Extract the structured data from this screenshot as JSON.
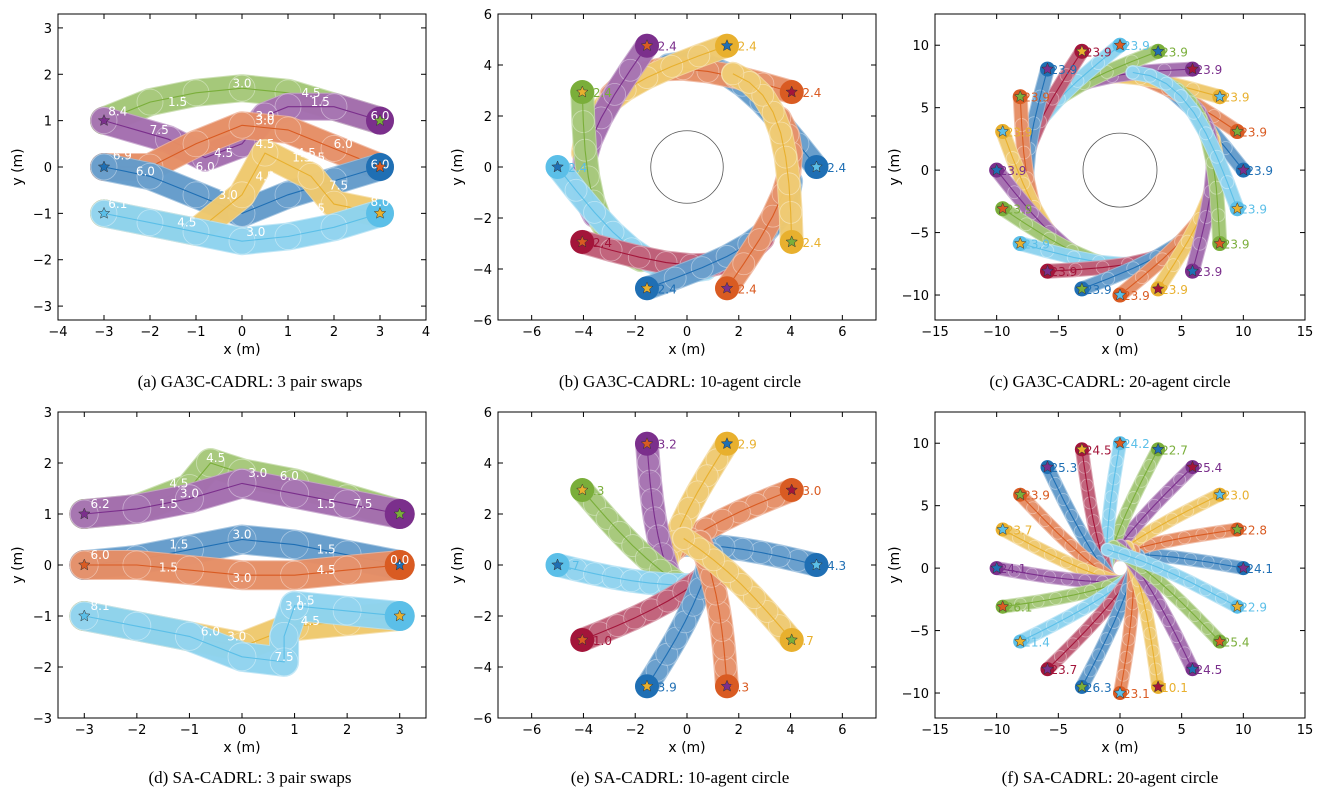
{
  "colors": [
    "#1f6fb4",
    "#d95b22",
    "#e8b02e",
    "#7b2f8c",
    "#7aae3a",
    "#5bbfe8",
    "#a3153a"
  ],
  "chart_data": [
    {
      "id": "a",
      "type": "scatter",
      "caption": "(a) GA3C-CADRL: 3 pair swaps",
      "xlabel": "x (m)",
      "ylabel": "y (m)",
      "xlim": [
        -4,
        4
      ],
      "ylim": [
        -3.3,
        3.3
      ],
      "xticks": [
        "−4",
        "−3",
        "−2",
        "−1",
        "0",
        "1",
        "2",
        "3",
        "4"
      ],
      "yticks": [
        "−3",
        "−2",
        "−1",
        "0",
        "1",
        "2",
        "3"
      ],
      "xtick_values": [
        -4,
        -3,
        -2,
        -1,
        0,
        1,
        2,
        3,
        4
      ],
      "ytick_values": [
        -3,
        -2,
        -1,
        0,
        1,
        2,
        3
      ],
      "grid": false,
      "agents": [
        {
          "color": 4,
          "goal": [
            3,
            1
          ],
          "path": [
            [
              -3,
              1
            ],
            [
              -2,
              1.4
            ],
            [
              -1,
              1.6
            ],
            [
              0,
              1.7
            ],
            [
              1,
              1.6
            ],
            [
              2,
              1.3
            ],
            [
              3,
              1
            ]
          ],
          "labels": [
            [
              "1.5",
              -1.4,
              1.4
            ],
            [
              "3.0",
              0,
              1.8
            ],
            [
              "4.5",
              1.5,
              1.6
            ],
            [
              "6.0",
              3,
              1.1
            ]
          ]
        },
        {
          "color": 3,
          "goal": [
            -3,
            1
          ],
          "path": [
            [
              3,
              1
            ],
            [
              2,
              1.3
            ],
            [
              1,
              1.3
            ],
            [
              0.5,
              1.1
            ],
            [
              0,
              0.5
            ],
            [
              -0.8,
              0.2
            ],
            [
              -1.6,
              0.6
            ],
            [
              -3,
              1
            ]
          ],
          "labels": [
            [
              "1.5",
              1.7,
              1.4
            ],
            [
              "3.0",
              0.5,
              1.0
            ],
            [
              "4.5",
              -0.4,
              0.3
            ],
            [
              "6.0",
              -0.8,
              0
            ],
            [
              "7.5",
              -1.8,
              0.8
            ],
            [
              "8.4",
              -2.7,
              1.2
            ]
          ]
        },
        {
          "color": 1,
          "goal": [
            3,
            0
          ],
          "path": [
            [
              -3,
              0
            ],
            [
              -2,
              0
            ],
            [
              -1,
              0.5
            ],
            [
              0,
              0.9
            ],
            [
              1,
              0.8
            ],
            [
              2,
              0.4
            ],
            [
              3,
              0
            ]
          ],
          "labels": [
            [
              "1.5",
              1.6,
              0.2
            ],
            [
              "3.0",
              0.5,
              1.1
            ],
            [
              "4.5",
              1.4,
              0.3
            ],
            [
              "6.0",
              2.2,
              0.5
            ],
            [
              "6.0",
              3,
              0.05
            ]
          ]
        },
        {
          "color": 0,
          "goal": [
            -3,
            0
          ],
          "path": [
            [
              3,
              0
            ],
            [
              2,
              -0.3
            ],
            [
              1,
              -0.6
            ],
            [
              0,
              -1
            ],
            [
              -1,
              -0.6
            ],
            [
              -2,
              -0.2
            ],
            [
              -3,
              0
            ]
          ],
          "labels": [
            [
              "1.5",
              1.3,
              0.2
            ],
            [
              "3.0",
              -0.3,
              -0.6
            ],
            [
              "4.5",
              0.5,
              -0.2
            ],
            [
              "6.0",
              -2.1,
              -0.1
            ],
            [
              "6.9",
              -2.6,
              0.25
            ]
          ]
        },
        {
          "color": 2,
          "goal": [
            3,
            -1
          ],
          "path": [
            [
              -3,
              -1
            ],
            [
              -2,
              -1.2
            ],
            [
              -1,
              -1.4
            ],
            [
              0,
              -0.6
            ],
            [
              0.5,
              0.3
            ],
            [
              1.5,
              -0.2
            ],
            [
              2,
              -0.8
            ],
            [
              3,
              -1
            ]
          ],
          "labels": [
            [
              "4.5",
              0.5,
              0.5
            ],
            [
              "7.5",
              2.1,
              -0.4
            ],
            [
              "8.0",
              3,
              -0.75
            ]
          ]
        },
        {
          "color": 5,
          "goal": [
            -3,
            -1
          ],
          "path": [
            [
              3,
              -1
            ],
            [
              2,
              -1.3
            ],
            [
              1,
              -1.5
            ],
            [
              0,
              -1.6
            ],
            [
              -1,
              -1.4
            ],
            [
              -2,
              -1.2
            ],
            [
              -3,
              -1
            ]
          ],
          "labels": [
            [
              "1.5",
              1.6,
              -0.9
            ],
            [
              "3.0",
              0.3,
              -1.4
            ],
            [
              "4.5",
              -1.2,
              -1.2
            ],
            [
              "6.1",
              -2.7,
              -0.8
            ]
          ]
        }
      ]
    },
    {
      "id": "b",
      "type": "scatter",
      "caption": "(b) GA3C-CADRL: 10-agent circle",
      "xlabel": "x (m)",
      "ylabel": "y (m)",
      "xlim": [
        -7.3,
        7.3
      ],
      "ylim": [
        -6,
        6
      ],
      "xticks": [
        "−6",
        "−4",
        "−2",
        "0",
        "2",
        "4",
        "6"
      ],
      "yticks": [
        "−6",
        "−4",
        "−2",
        "0",
        "2",
        "4",
        "6"
      ],
      "xtick_values": [
        -6,
        -4,
        -2,
        0,
        2,
        4,
        6
      ],
      "ytick_values": [
        -6,
        -4,
        -2,
        0,
        2,
        4,
        6
      ],
      "grid": false,
      "circle": {
        "n": 10,
        "radius": 5,
        "swirl": 1.2,
        "hole": 1.4,
        "stroke": 22,
        "label": "12.4",
        "label_all": true
      }
    },
    {
      "id": "c",
      "type": "scatter",
      "caption": "(c) GA3C-CADRL: 20-agent circle",
      "xlabel": "x (m)",
      "ylabel": "y (m)",
      "xlim": [
        -15,
        15
      ],
      "ylim": [
        -12,
        12.5
      ],
      "xticks": [
        "−15",
        "−10",
        "−5",
        "0",
        "5",
        "10",
        "15"
      ],
      "yticks": [
        "−10",
        "−5",
        "0",
        "5",
        "10"
      ],
      "xtick_values": [
        -15,
        -10,
        -5,
        0,
        5,
        10,
        15
      ],
      "ytick_values": [
        -10,
        -5,
        0,
        5,
        10
      ],
      "grid": false,
      "circle": {
        "n": 20,
        "radius": 10,
        "swirl": 1.1,
        "hole": 3,
        "stroke": 13,
        "label": "23.9",
        "label_all": true
      }
    },
    {
      "id": "d",
      "type": "scatter",
      "caption": "(d) SA-CADRL: 3 pair swaps",
      "xlabel": "x (m)",
      "ylabel": "y (m)",
      "xlim": [
        -3.5,
        3.5
      ],
      "ylim": [
        -3,
        3
      ],
      "xticks": [
        "−3",
        "−2",
        "−1",
        "0",
        "1",
        "2",
        "3"
      ],
      "yticks": [
        "−3",
        "−2",
        "−1",
        "0",
        "1",
        "2",
        "3"
      ],
      "xtick_values": [
        -3,
        -2,
        -1,
        0,
        1,
        2,
        3
      ],
      "ytick_values": [
        -3,
        -2,
        -1,
        0,
        1,
        2,
        3
      ],
      "grid": false,
      "agents": [
        {
          "color": 4,
          "goal": [
            3,
            1
          ],
          "path": [
            [
              -3,
              1
            ],
            [
              -2,
              1.1
            ],
            [
              -1,
              1.5
            ],
            [
              -0.6,
              2.0
            ],
            [
              0,
              1.8
            ],
            [
              1,
              1.6
            ],
            [
              2,
              1.3
            ],
            [
              3,
              1
            ]
          ],
          "labels": [
            [
              "4.5",
              -0.5,
              2.1
            ],
            [
              "3.0",
              0.3,
              1.8
            ],
            [
              "6.0",
              0.9,
              1.75
            ],
            [
              "1.5",
              1.6,
              1.2
            ],
            [
              "7.5",
              2.3,
              1.2
            ]
          ]
        },
        {
          "color": 3,
          "goal": [
            -3,
            1
          ],
          "path": [
            [
              3,
              1
            ],
            [
              2,
              1.2
            ],
            [
              1,
              1.4
            ],
            [
              0,
              1.6
            ],
            [
              -1,
              1.3
            ],
            [
              -2,
              1.1
            ],
            [
              -3,
              1
            ]
          ],
          "labels": [
            [
              "1.5",
              -1.4,
              1.2
            ],
            [
              "3.0",
              -1,
              1.4
            ],
            [
              "4.5",
              -1.2,
              1.6
            ],
            [
              "6.2",
              -2.7,
              1.2
            ]
          ]
        },
        {
          "color": 0,
          "goal": [
            3,
            0
          ],
          "path": [
            [
              -3,
              0
            ],
            [
              -2,
              0.1
            ],
            [
              -1,
              0.3
            ],
            [
              0,
              0.5
            ],
            [
              1,
              0.4
            ],
            [
              2,
              0.2
            ],
            [
              3,
              0
            ]
          ],
          "labels": [
            [
              "1.5",
              -1.2,
              0.4
            ],
            [
              "3.0",
              0,
              0.6
            ],
            [
              "1.5",
              1.6,
              0.3
            ],
            [
              "6.0",
              -2.7,
              0.2
            ]
          ]
        },
        {
          "color": 1,
          "goal": [
            -3,
            0
          ],
          "path": [
            [
              3,
              0
            ],
            [
              2,
              -0.1
            ],
            [
              1,
              -0.2
            ],
            [
              0,
              -0.2
            ],
            [
              -1,
              -0.1
            ],
            [
              -2,
              0
            ],
            [
              -3,
              0
            ]
          ],
          "labels": [
            [
              "1.5",
              -1.4,
              -0.05
            ],
            [
              "3.0",
              0,
              -0.25
            ],
            [
              "4.5",
              1.6,
              -0.1
            ],
            [
              "0.0",
              3,
              0.1
            ]
          ]
        },
        {
          "color": 2,
          "goal": [
            3,
            -1
          ],
          "path": [
            [
              -3,
              -1
            ],
            [
              -2,
              -1.2
            ],
            [
              -1,
              -1.4
            ],
            [
              0,
              -1.6
            ],
            [
              1,
              -1.2
            ],
            [
              2,
              -1.1
            ],
            [
              3,
              -1
            ]
          ],
          "labels": [
            [
              "3.0",
              -0.1,
              -1.4
            ],
            [
              "4.5",
              1.3,
              -1.1
            ]
          ]
        },
        {
          "color": 5,
          "goal": [
            -3,
            -1
          ],
          "path": [
            [
              3,
              -1
            ],
            [
              2,
              -0.9
            ],
            [
              1,
              -0.8
            ],
            [
              0.8,
              -1.4
            ],
            [
              0.8,
              -1.9
            ],
            [
              0,
              -1.8
            ],
            [
              -1,
              -1.4
            ],
            [
              -2,
              -1.2
            ],
            [
              -3,
              -1
            ]
          ],
          "labels": [
            [
              "1.5",
              1.2,
              -0.7
            ],
            [
              "3.0",
              1,
              -0.8
            ],
            [
              "6.0",
              -0.6,
              -1.3
            ],
            [
              "7.5",
              0.8,
              -1.8
            ],
            [
              "8.1",
              -2.7,
              -0.8
            ]
          ]
        }
      ]
    },
    {
      "id": "e",
      "type": "scatter",
      "caption": "(e) SA-CADRL: 10-agent circle",
      "xlabel": "x (m)",
      "ylabel": "y (m)",
      "xlim": [
        -7.3,
        7.3
      ],
      "ylim": [
        -6,
        6
      ],
      "xticks": [
        "−6",
        "−4",
        "−2",
        "0",
        "2",
        "4",
        "6"
      ],
      "yticks": [
        "−6",
        "−4",
        "−2",
        "0",
        "2",
        "4",
        "6"
      ],
      "xtick_values": [
        -6,
        -4,
        -2,
        0,
        2,
        4,
        6
      ],
      "ytick_values": [
        -6,
        -4,
        -2,
        0,
        2,
        4,
        6
      ],
      "grid": false,
      "circle": {
        "n": 10,
        "radius": 5,
        "swirl": 0.35,
        "hole": 0,
        "stroke": 22,
        "labels": [
          "14.3",
          "13.0",
          "12.9",
          "13.2",
          "6.3",
          "4.7",
          "11.0",
          "13.9",
          "6.3",
          "4.7"
        ]
      }
    },
    {
      "id": "f",
      "type": "scatter",
      "caption": "(f) SA-CADRL: 20-agent circle",
      "xlabel": "x (m)",
      "ylabel": "y (m)",
      "xlim": [
        -15,
        15
      ],
      "ylim": [
        -12,
        12.5
      ],
      "xticks": [
        "−15",
        "−10",
        "−5",
        "0",
        "5",
        "10",
        "15"
      ],
      "yticks": [
        "−10",
        "−5",
        "0",
        "5",
        "10"
      ],
      "xtick_values": [
        -15,
        -10,
        -5,
        0,
        5,
        10,
        15
      ],
      "ytick_values": [
        -10,
        -5,
        0,
        5,
        10
      ],
      "grid": false,
      "circle": {
        "n": 20,
        "radius": 10,
        "swirl": 0.25,
        "hole": 0,
        "stroke": 12,
        "labels": [
          "24.1",
          "22.8",
          "23.0",
          "25.4",
          "22.7",
          "24.2",
          "24.5",
          "25.3",
          "23.9",
          "23.7",
          "24.1",
          "26.1",
          "21.4",
          "23.7",
          "26.3",
          "23.1",
          "10.1",
          "24.5",
          "25.4",
          "22.9"
        ]
      }
    }
  ]
}
